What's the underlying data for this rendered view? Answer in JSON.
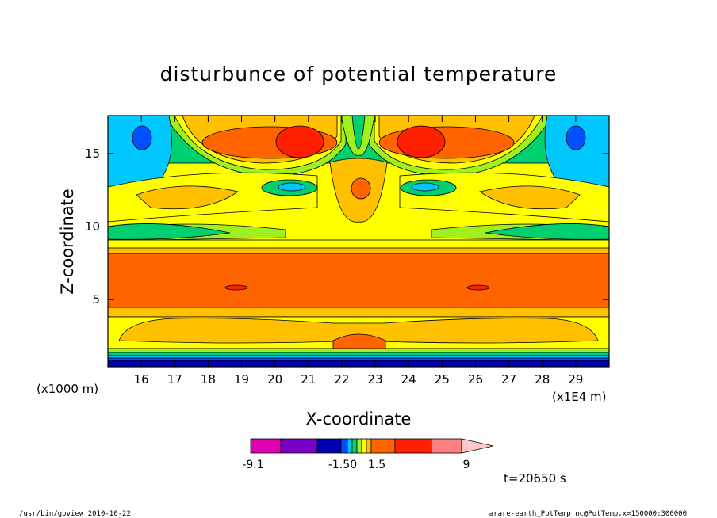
{
  "chart_data": {
    "type": "heatmap",
    "title": "disturbunce of potential temperature",
    "xlabel": "X-coordinate",
    "ylabel": "Z-coordinate",
    "x_unit_left": "(x1000 m)",
    "x_unit_right": "(x1E4 m)",
    "xlim": [
      15.0,
      30.0
    ],
    "ylim": [
      0.4,
      17.6
    ],
    "x_ticks": [
      "16",
      "17",
      "18",
      "19",
      "20",
      "21",
      "22",
      "23",
      "24",
      "25",
      "26",
      "27",
      "28",
      "29"
    ],
    "y_ticks": [
      "5",
      "10",
      "15"
    ],
    "time_label": "t=20650 s",
    "colorbar": {
      "tick_labels": [
        "-9.1",
        "-1.50",
        "1.5",
        "9"
      ],
      "levels": [
        -9.1,
        -7.5,
        -4.5,
        -1.5,
        -1.0,
        -0.5,
        0.0,
        0.5,
        1.0,
        1.5,
        3.0,
        6.0,
        9.0
      ],
      "colors": [
        "#e000b4",
        "#7a00c8",
        "#0000b0",
        "#0050ff",
        "#00c8ff",
        "#00d070",
        "#a0f020",
        "#ffff00",
        "#ffc000",
        "#ff6400",
        "#ff2000",
        "#ff8080",
        "#ffc8c8"
      ]
    },
    "levels_to_colors": {
      "deep_blue": "#0000b0",
      "blue": "#0050ff",
      "cyan": "#00c8ff",
      "green": "#00d070",
      "lime": "#a0f020",
      "yellow": "#ffff00",
      "light_orange": "#ffc000",
      "orange": "#ff6400",
      "red": "#ff2000"
    }
  },
  "footer": {
    "left": "/usr/bin/gpview   2010-10-22",
    "right": "arare-earth_PotTemp.nc@PotTemp,x=150000:300000"
  }
}
